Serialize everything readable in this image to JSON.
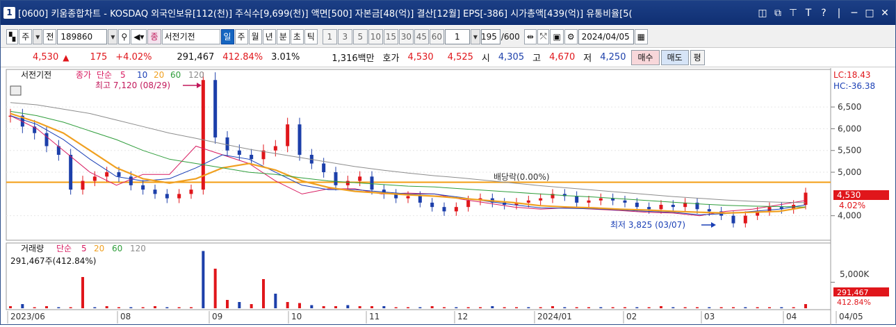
{
  "window": {
    "number": "1",
    "title": "[0600] 키움종합차트 - KOSDAQ 외국인보유[112(천)] 주식수[9,699(천)] 액면[500] 자본금[48(억)] 결산[12월] EPS[-386] 시가총액[439(억)] 유통비율[5("
  },
  "toolbar": {
    "market": "주",
    "scope": "전",
    "code": "189860",
    "name_badge": "종",
    "name": "서전기전",
    "periods": [
      "일",
      "주",
      "월",
      "년",
      "분",
      "초",
      "틱"
    ],
    "active_period": "일",
    "intervals": [
      "1",
      "3",
      "5",
      "10",
      "15",
      "30",
      "45",
      "60"
    ],
    "count_value": "1",
    "view_count": "195",
    "view_total": "/600",
    "date": "2024/04/05"
  },
  "quote": {
    "price": "4,530",
    "change": "175",
    "change_pct": "+4.02%",
    "volume": "291,467",
    "volume_ratio": "412.84%",
    "turnover": "3.01%",
    "amount": "1,316백만",
    "ask_label": "호가",
    "ask": "4,530",
    "bid": "4,525",
    "open_label": "시",
    "open": "4,305",
    "high_label": "고",
    "high": "4,670",
    "low_label": "저",
    "low": "4,250",
    "buy_button": "매수",
    "sell_button": "매도",
    "eval_button": "평"
  },
  "colors": {
    "up": "#e0161b",
    "down": "#1c3faa",
    "ma5": "#d81b60",
    "ma10": "#1a3fb5",
    "ma20": "#f0a020",
    "ma60": "#2e9d3a",
    "ma120": "#8c8c8c",
    "hline": "#f39c12"
  },
  "chart_data": [
    {
      "type": "line",
      "pane": "price",
      "legend_prefix": "서전기전",
      "legend_type": "종가",
      "legend_method": "단순",
      "series": [
        {
          "name": "5",
          "values": [
            6300,
            6000,
            5500,
            5000,
            4700,
            4950,
            4950,
            5600,
            5400,
            5200,
            4800,
            4500,
            4620,
            4620,
            4500,
            4520,
            4500,
            4380,
            4290,
            4200,
            4150,
            4180,
            4150,
            4120,
            4080,
            4060,
            4000,
            4100,
            4150,
            4250,
            4350
          ]
        },
        {
          "name": "10",
          "values": [
            6300,
            6100,
            5750,
            5300,
            4900,
            4800,
            4850,
            5100,
            5400,
            5300,
            5000,
            4700,
            4600,
            4600,
            4550,
            4500,
            4500,
            4420,
            4330,
            4250,
            4180,
            4170,
            4160,
            4130,
            4100,
            4080,
            4020,
            4050,
            4100,
            4150,
            4250
          ]
        },
        {
          "name": "20",
          "values": [
            6350,
            6150,
            5900,
            5500,
            5100,
            4850,
            4750,
            4850,
            5100,
            5200,
            5050,
            4800,
            4650,
            4560,
            4520,
            4480,
            4450,
            4400,
            4350,
            4300,
            4230,
            4200,
            4180,
            4150,
            4130,
            4100,
            4080,
            4060,
            4080,
            4100,
            4200
          ]
        },
        {
          "name": "60",
          "values": [
            6400,
            6300,
            6150,
            5950,
            5750,
            5500,
            5300,
            5200,
            5100,
            5000,
            4950,
            4870,
            4800,
            4760,
            4720,
            4680,
            4660,
            4620,
            4580,
            4540,
            4500,
            4460,
            4430,
            4390,
            4350,
            4310,
            4270,
            4240,
            4220,
            4210,
            4200
          ]
        },
        {
          "name": "120",
          "values": [
            6600,
            6550,
            6450,
            6350,
            6200,
            6050,
            5900,
            5780,
            5650,
            5530,
            5430,
            5330,
            5230,
            5130,
            5050,
            4980,
            4920,
            4870,
            4810,
            4750,
            4690,
            4640,
            4590,
            4540,
            4490,
            4440,
            4400,
            4360,
            4330,
            4310,
            4300
          ]
        }
      ],
      "candles": [
        6300,
        6050,
        5900,
        5600,
        5400,
        4600,
        4800,
        4900,
        5000,
        4900,
        4700,
        4600,
        4500,
        4400,
        4500,
        4600,
        7120,
        5800,
        5500,
        5400,
        5300,
        5500,
        5600,
        6100,
        5400,
        5200,
        5000,
        4700,
        4800,
        4900,
        4600,
        4500,
        4400,
        4450,
        4300,
        4200,
        4100,
        4200,
        4350,
        4400,
        4300,
        4250,
        4300,
        4350,
        4400,
        4500,
        4450,
        4300,
        4350,
        4400,
        4350,
        4300,
        4200,
        4150,
        4250,
        4200,
        4300,
        4150,
        4100,
        4000,
        3825,
        4000,
        4100,
        4200,
        4150,
        4250,
        4530
      ],
      "ylim": [
        3500,
        7300
      ],
      "ticks": [
        "6,500",
        "6,000",
        "5,500",
        "5,000",
        "4,000"
      ],
      "tick_values": [
        6500,
        6000,
        5500,
        5000,
        4000
      ],
      "hline": 4770,
      "last_price_label": "4,530",
      "last_pct_label": "4.02%",
      "lc_label": "LC:18.43",
      "hc_label": "HC:-36.38",
      "annotations": {
        "high": "최고 7,120 (08/29)",
        "low": "최저 3,825 (03/07)",
        "dividend": "배당락(0.00%)"
      }
    },
    {
      "type": "bar",
      "pane": "volume",
      "legend": "거래량",
      "legend_method": "단순",
      "legend_series": [
        "5",
        "20",
        "60",
        "120"
      ],
      "current_label": "291,467주(412.84%)",
      "values": [
        2,
        4,
        1,
        2,
        1,
        1,
        30,
        1,
        2,
        1,
        1,
        1,
        2,
        1,
        1,
        1,
        55,
        38,
        8,
        6,
        4,
        28,
        14,
        6,
        5,
        3,
        2,
        2,
        3,
        2,
        2,
        2,
        1,
        1,
        1,
        2,
        1,
        1,
        1,
        1,
        2,
        1,
        1,
        1,
        1,
        2,
        1,
        1,
        1,
        1,
        1,
        1,
        1,
        1,
        2,
        1,
        1,
        1,
        1,
        1,
        1,
        1,
        1,
        1,
        1,
        1,
        4
      ],
      "ylim": [
        0,
        60
      ],
      "tick_label": "5,000K",
      "tick_value": 25,
      "last_label": "291,467",
      "last_pct": "412.84%"
    }
  ],
  "x_axis": {
    "labels": [
      "2023/06",
      "08",
      "09",
      "10",
      "11",
      "12",
      "2024/01",
      "02",
      "03",
      "04",
      "04/05"
    ]
  }
}
